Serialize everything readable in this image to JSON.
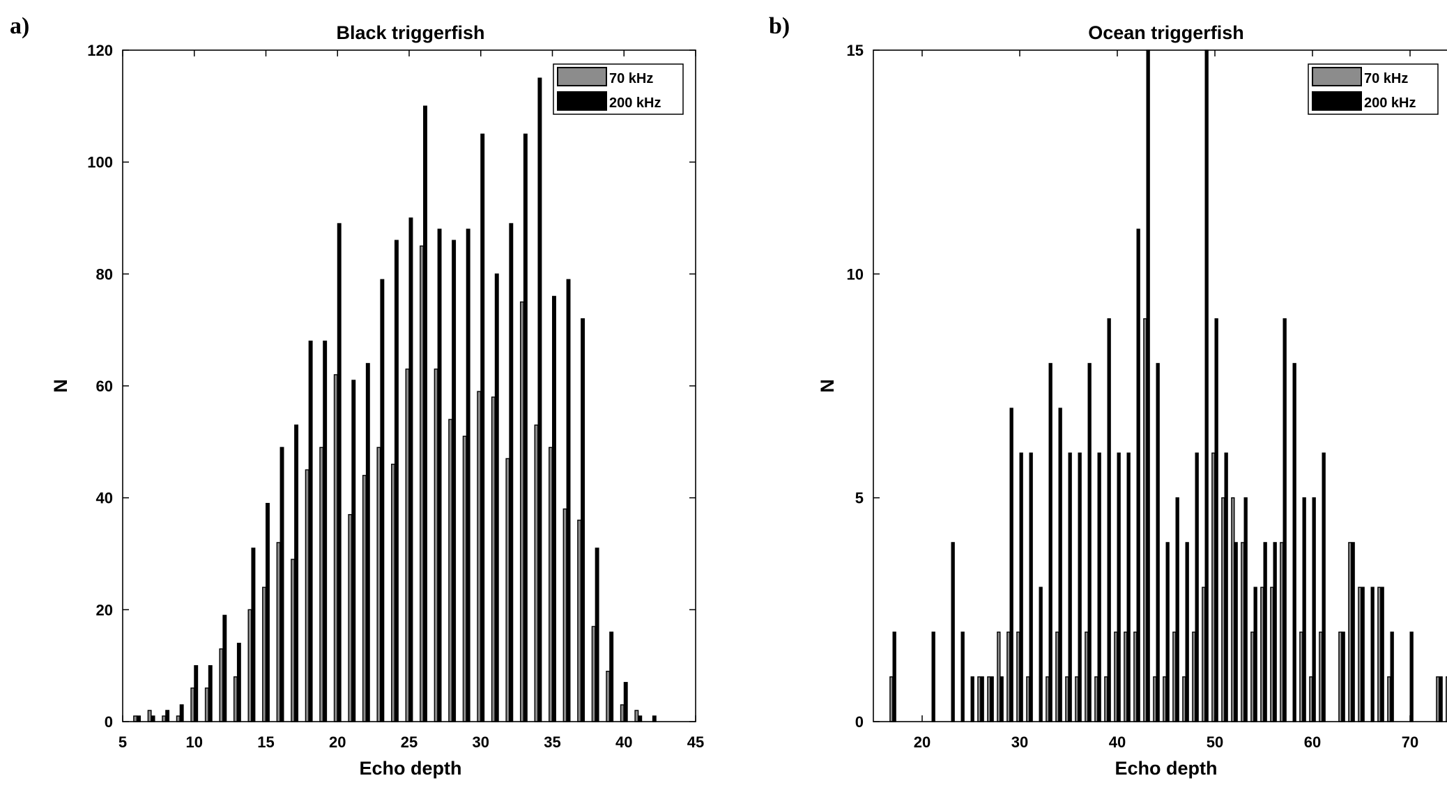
{
  "figure": {
    "colors": {
      "s70": "#8c8c8c",
      "s200": "#000000",
      "axis": "#000000"
    },
    "panels": [
      {
        "letter": "a)",
        "legend": [
          "70 kHz",
          "200 kHz"
        ]
      },
      {
        "letter": "b)",
        "legend": [
          "70 kHz",
          "200 kHz"
        ]
      }
    ]
  },
  "chart_data": [
    {
      "type": "bar",
      "title": "Black triggerfish",
      "xlabel": "Echo depth",
      "ylabel": "N",
      "xlim": [
        5,
        45
      ],
      "ylim": [
        0,
        120
      ],
      "xticks": [
        5,
        10,
        15,
        20,
        25,
        30,
        35,
        40,
        45
      ],
      "yticks": [
        0,
        20,
        40,
        60,
        80,
        100,
        120
      ],
      "legend_position": "top-right",
      "x": [
        6,
        7,
        8,
        9,
        10,
        11,
        12,
        13,
        14,
        15,
        16,
        17,
        18,
        19,
        20,
        21,
        22,
        23,
        24,
        25,
        26,
        27,
        28,
        29,
        30,
        31,
        32,
        33,
        34,
        35,
        36,
        37,
        38,
        39,
        40,
        41,
        42
      ],
      "series": [
        {
          "name": "70 kHz",
          "values": [
            1,
            2,
            1,
            1,
            6,
            6,
            13,
            8,
            20,
            24,
            32,
            29,
            45,
            49,
            62,
            37,
            44,
            49,
            46,
            63,
            85,
            63,
            54,
            51,
            59,
            58,
            47,
            75,
            53,
            49,
            38,
            36,
            17,
            9,
            3,
            2,
            0
          ]
        },
        {
          "name": "200 kHz",
          "values": [
            1,
            1,
            2,
            3,
            10,
            10,
            19,
            14,
            31,
            39,
            49,
            53,
            68,
            68,
            89,
            61,
            64,
            79,
            86,
            90,
            110,
            88,
            86,
            88,
            105,
            80,
            89,
            105,
            115,
            76,
            79,
            72,
            31,
            16,
            7,
            1,
            1
          ]
        }
      ]
    },
    {
      "type": "bar",
      "title": "Ocean triggerfish",
      "xlabel": "Echo depth",
      "ylabel": "N",
      "xlim": [
        15,
        75
      ],
      "ylim": [
        0,
        15
      ],
      "xticks": [
        20,
        30,
        40,
        50,
        60,
        70
      ],
      "yticks": [
        0,
        5,
        10,
        15
      ],
      "legend_position": "top-right",
      "x": [
        17,
        21,
        23,
        24,
        25,
        26,
        27,
        28,
        29,
        30,
        31,
        32,
        33,
        34,
        35,
        36,
        37,
        38,
        39,
        40,
        41,
        42,
        43,
        44,
        45,
        46,
        47,
        48,
        49,
        50,
        51,
        52,
        53,
        54,
        55,
        56,
        57,
        58,
        59,
        60,
        61,
        63,
        64,
        65,
        66,
        67,
        68,
        70,
        73,
        74
      ],
      "series": [
        {
          "name": "70 kHz",
          "values": [
            1,
            0,
            0,
            0,
            0,
            1,
            1,
            2,
            2,
            2,
            1,
            0,
            1,
            2,
            1,
            1,
            2,
            1,
            1,
            2,
            2,
            2,
            9,
            1,
            1,
            2,
            1,
            2,
            3,
            6,
            5,
            5,
            4,
            2,
            3,
            3,
            4,
            0,
            2,
            1,
            2,
            2,
            4,
            3,
            0,
            3,
            1,
            0,
            1,
            1
          ]
        },
        {
          "name": "200 kHz",
          "values": [
            2,
            2,
            4,
            2,
            1,
            1,
            1,
            1,
            7,
            6,
            6,
            3,
            8,
            7,
            6,
            6,
            8,
            6,
            9,
            6,
            6,
            11,
            15,
            8,
            4,
            5,
            4,
            6,
            15,
            9,
            6,
            4,
            5,
            3,
            4,
            4,
            9,
            8,
            5,
            5,
            6,
            2,
            4,
            3,
            3,
            3,
            2,
            2,
            1,
            1
          ]
        }
      ]
    }
  ]
}
